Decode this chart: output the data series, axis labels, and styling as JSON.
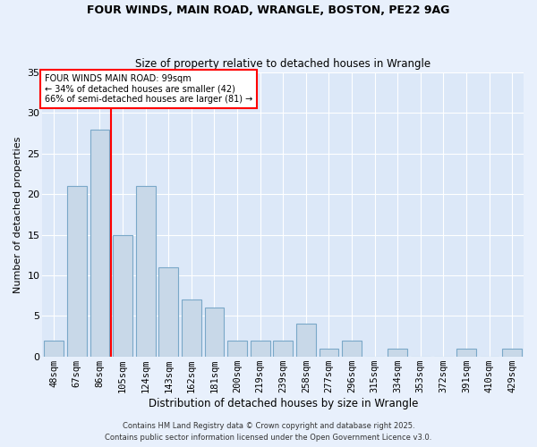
{
  "title": "FOUR WINDS, MAIN ROAD, WRANGLE, BOSTON, PE22 9AG",
  "subtitle": "Size of property relative to detached houses in Wrangle",
  "xlabel": "Distribution of detached houses by size in Wrangle",
  "ylabel": "Number of detached properties",
  "bar_color": "#c8d8e8",
  "bar_edge_color": "#7aa8c8",
  "background_color": "#dce8f8",
  "grid_color": "#ffffff",
  "fig_bg_color": "#e8f0fc",
  "categories": [
    "48sqm",
    "67sqm",
    "86sqm",
    "105sqm",
    "124sqm",
    "143sqm",
    "162sqm",
    "181sqm",
    "200sqm",
    "219sqm",
    "239sqm",
    "258sqm",
    "277sqm",
    "296sqm",
    "315sqm",
    "334sqm",
    "353sqm",
    "372sqm",
    "391sqm",
    "410sqm",
    "429sqm"
  ],
  "values": [
    2,
    21,
    28,
    15,
    21,
    11,
    7,
    6,
    2,
    2,
    2,
    4,
    1,
    2,
    0,
    1,
    0,
    0,
    1,
    0,
    1
  ],
  "ylim": [
    0,
    35
  ],
  "yticks": [
    0,
    5,
    10,
    15,
    20,
    25,
    30,
    35
  ],
  "red_line_index": 2,
  "annotation_text": "FOUR WINDS MAIN ROAD: 99sqm\n← 34% of detached houses are smaller (42)\n66% of semi-detached houses are larger (81) →",
  "footer_line1": "Contains HM Land Registry data © Crown copyright and database right 2025.",
  "footer_line2": "Contains public sector information licensed under the Open Government Licence v3.0."
}
